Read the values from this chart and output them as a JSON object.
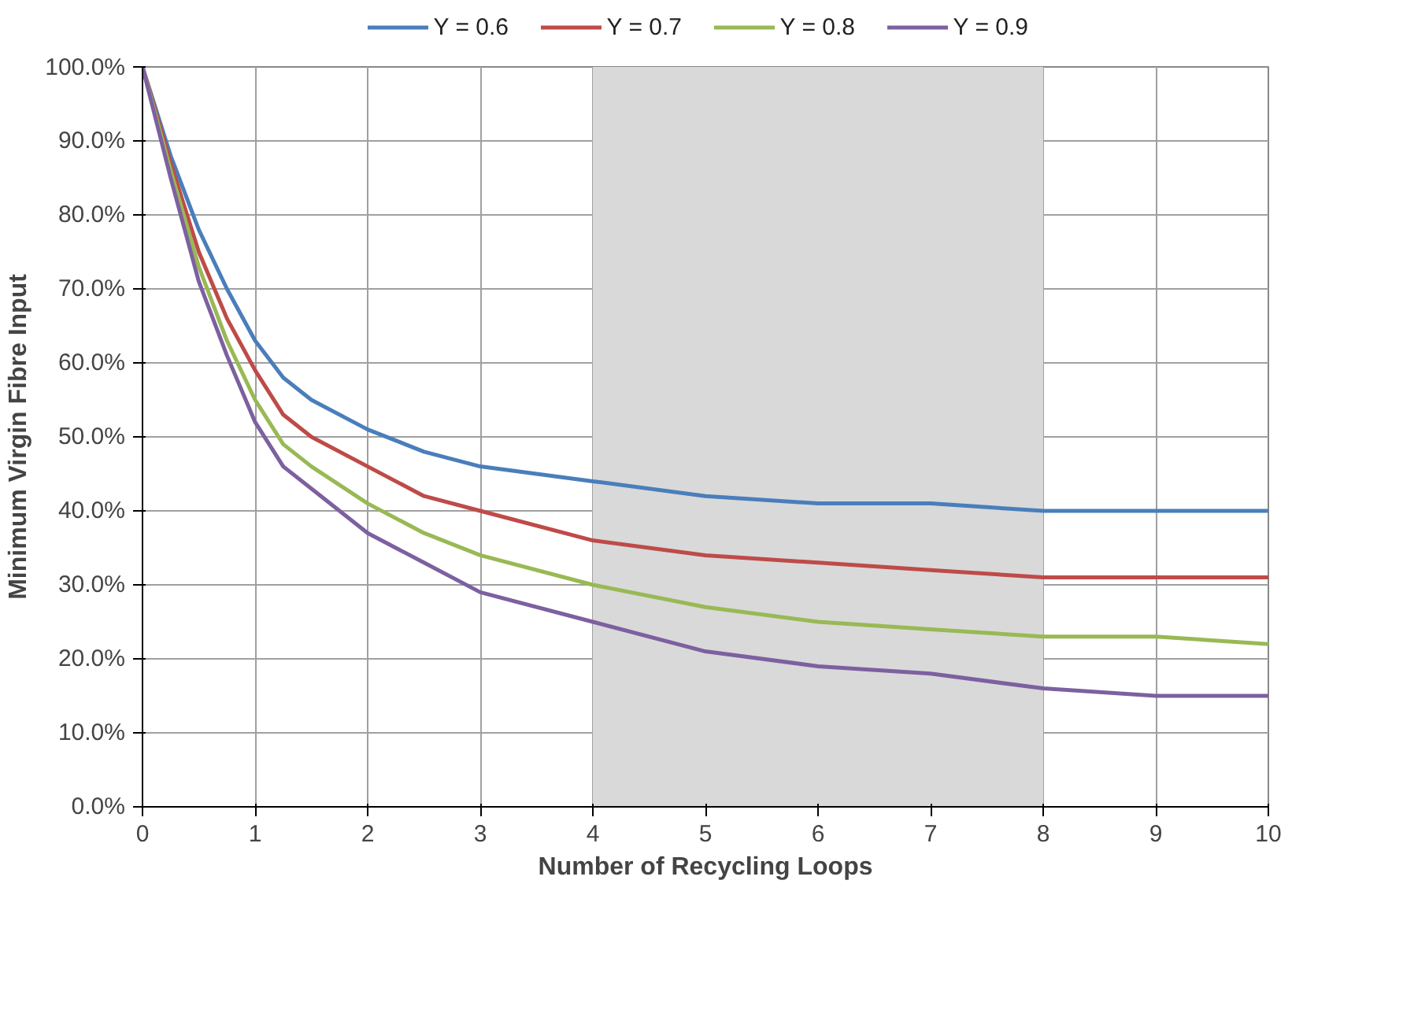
{
  "chart_data": {
    "type": "line",
    "xlabel": "Number of Recycling Loops",
    "ylabel": "Minimum Virgin Fibre Input",
    "x": [
      0,
      0.25,
      0.5,
      0.75,
      1,
      1.25,
      1.5,
      2,
      2.5,
      3,
      4,
      5,
      6,
      7,
      8,
      9,
      10
    ],
    "series": [
      {
        "name": "Y = 0.6",
        "color": "#4a7ebb",
        "values": [
          100,
          88,
          78,
          70,
          63,
          58,
          55,
          51,
          48,
          46,
          44,
          42,
          41,
          41,
          40,
          40,
          40
        ]
      },
      {
        "name": "Y = 0.7",
        "color": "#be4b48",
        "values": [
          100,
          87,
          75,
          66,
          59,
          53,
          50,
          46,
          42,
          40,
          36,
          34,
          33,
          32,
          31,
          31,
          31
        ]
      },
      {
        "name": "Y = 0.8",
        "color": "#98b954",
        "values": [
          100,
          86,
          73,
          63,
          55,
          49,
          46,
          41,
          37,
          34,
          30,
          27,
          25,
          24,
          23,
          23,
          22
        ]
      },
      {
        "name": "Y = 0.9",
        "color": "#7d60a0",
        "values": [
          100,
          85,
          71,
          61,
          52,
          46,
          43,
          37,
          33,
          29,
          25,
          21,
          19,
          18,
          16,
          15,
          15
        ]
      }
    ],
    "xlim": [
      0,
      10
    ],
    "xticks": [
      0,
      1,
      2,
      3,
      4,
      5,
      6,
      7,
      8,
      9,
      10
    ],
    "ylim": [
      0,
      100
    ],
    "yticks": [
      {
        "value": 0,
        "label": "0.0%"
      },
      {
        "value": 10,
        "label": "10.0%"
      },
      {
        "value": 20,
        "label": "20.0%"
      },
      {
        "value": 30,
        "label": "30.0%"
      },
      {
        "value": 40,
        "label": "40.0%"
      },
      {
        "value": 50,
        "label": "50.0%"
      },
      {
        "value": 60,
        "label": "60.0%"
      },
      {
        "value": 70,
        "label": "70.0%"
      },
      {
        "value": 80,
        "label": "80.0%"
      },
      {
        "value": 90,
        "label": "90.0%"
      },
      {
        "value": 100,
        "label": "100.0%"
      }
    ],
    "bands": [
      {
        "axis": "x",
        "from": 4,
        "to": 8,
        "color": "#d9d9d9"
      }
    ],
    "grid": true,
    "legend": "top",
    "marker": "none",
    "line_style": "solid"
  }
}
